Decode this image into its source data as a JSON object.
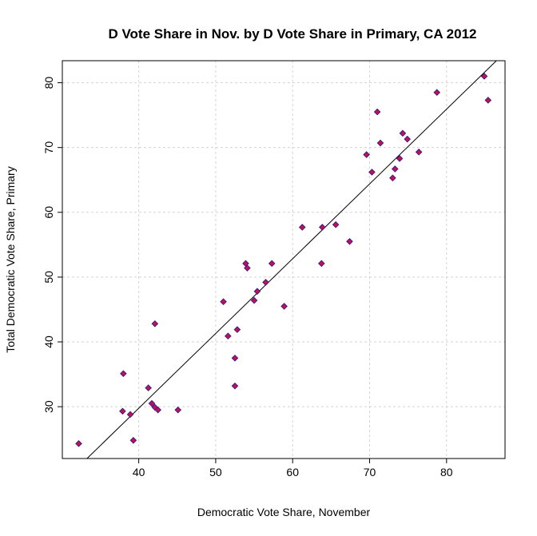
{
  "chart_data": {
    "type": "scatter",
    "title": "D Vote Share in Nov. by D Vote Share in Primary, CA 2012",
    "xlabel": "Democratic Vote Share, November",
    "ylabel": "Total Democratic Vote Share, Primary",
    "xlim": [
      30.07,
      87.6
    ],
    "ylim": [
      22.0,
      83.4
    ],
    "xticks": [
      40,
      50,
      60,
      70,
      80
    ],
    "yticks": [
      30,
      40,
      50,
      60,
      70,
      80
    ],
    "grid": true,
    "marker_fill": "#c8104e",
    "marker_edge": "#3a1a8a",
    "fit_line": {
      "slope": 1.154,
      "intercept": -16.4,
      "color": "#000000"
    },
    "points": [
      [
        32.2,
        24.3
      ],
      [
        38.0,
        35.1
      ],
      [
        37.9,
        29.3
      ],
      [
        38.9,
        28.8
      ],
      [
        39.3,
        24.8
      ],
      [
        41.25,
        32.9
      ],
      [
        41.7,
        30.5
      ],
      [
        42.1,
        29.9
      ],
      [
        42.5,
        29.5
      ],
      [
        42.1,
        42.8
      ],
      [
        45.1,
        29.5
      ],
      [
        51.0,
        46.2
      ],
      [
        51.6,
        40.9
      ],
      [
        52.8,
        41.9
      ],
      [
        52.5,
        37.5
      ],
      [
        52.5,
        33.2
      ],
      [
        53.9,
        52.1
      ],
      [
        54.1,
        51.4
      ],
      [
        55.0,
        46.4
      ],
      [
        55.4,
        47.8
      ],
      [
        56.5,
        49.2
      ],
      [
        57.3,
        52.1
      ],
      [
        58.9,
        45.5
      ],
      [
        61.25,
        57.7
      ],
      [
        63.85,
        57.7
      ],
      [
        65.6,
        58.1
      ],
      [
        63.75,
        52.1
      ],
      [
        67.4,
        55.5
      ],
      [
        69.6,
        68.9
      ],
      [
        70.3,
        66.2
      ],
      [
        71.0,
        75.5
      ],
      [
        71.4,
        70.7
      ],
      [
        73.0,
        65.3
      ],
      [
        73.3,
        66.7
      ],
      [
        73.9,
        68.3
      ],
      [
        74.3,
        72.2
      ],
      [
        74.9,
        71.3
      ],
      [
        76.4,
        69.3
      ],
      [
        78.75,
        78.5
      ],
      [
        84.9,
        81.0
      ],
      [
        85.4,
        77.3
      ]
    ]
  }
}
